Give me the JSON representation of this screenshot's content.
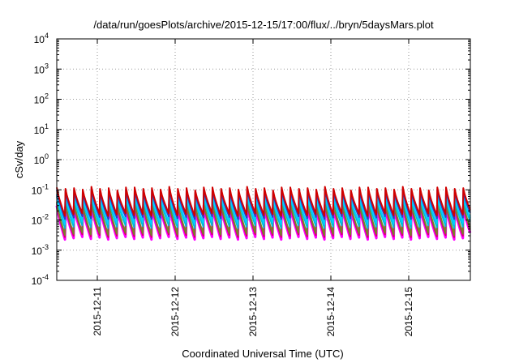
{
  "chart_data": {
    "type": "line",
    "title": "/data/run/goesPlots/archive/2015-12-15/17:00/flux/../bryn/5daysMars.plot",
    "xlabel": "Coordinated Universal Time (UTC)",
    "ylabel": "cSv/day",
    "y_scale": "log",
    "ylim": [
      0.0001,
      10000
    ],
    "xlim": [
      "2015-12-10T11:30",
      "2015-12-15T19:00"
    ],
    "y_ticks": [
      {
        "base": "10",
        "exp": "4"
      },
      {
        "base": "10",
        "exp": "3"
      },
      {
        "base": "10",
        "exp": "2"
      },
      {
        "base": "10",
        "exp": "1"
      },
      {
        "base": "10",
        "exp": "0"
      },
      {
        "base": "10",
        "exp": "-1"
      },
      {
        "base": "10",
        "exp": "-2"
      },
      {
        "base": "10",
        "exp": "-3"
      },
      {
        "base": "10",
        "exp": "-4"
      }
    ],
    "x_ticks": [
      "2015-12-11",
      "2015-12-12",
      "2015-12-13",
      "2015-12-14",
      "2015-12-15"
    ],
    "grid": true,
    "legend": "none",
    "pattern": {
      "description": "Sawtooth cycles: sharp rise at each cycle start followed by decay; values repeat periodically",
      "cycles_per_day": 9
    },
    "series": [
      {
        "color": "#ff00ff",
        "peak": 0.03,
        "trough": 0.0025
      },
      {
        "color": "#d4006a",
        "peak": 0.035,
        "trough": 0.003
      },
      {
        "color": "#7a7f2a",
        "peak": 0.04,
        "trough": 0.0035
      },
      {
        "color": "#00bcd4",
        "peak": 0.06,
        "trough": 0.006
      },
      {
        "color": "#00d0ff",
        "peak": 0.07,
        "trough": 0.008
      },
      {
        "color": "#2a3cc8",
        "peak": 0.1,
        "trough": 0.012
      },
      {
        "color": "#d00000",
        "peak": 0.12,
        "trough": 0.015
      }
    ]
  }
}
